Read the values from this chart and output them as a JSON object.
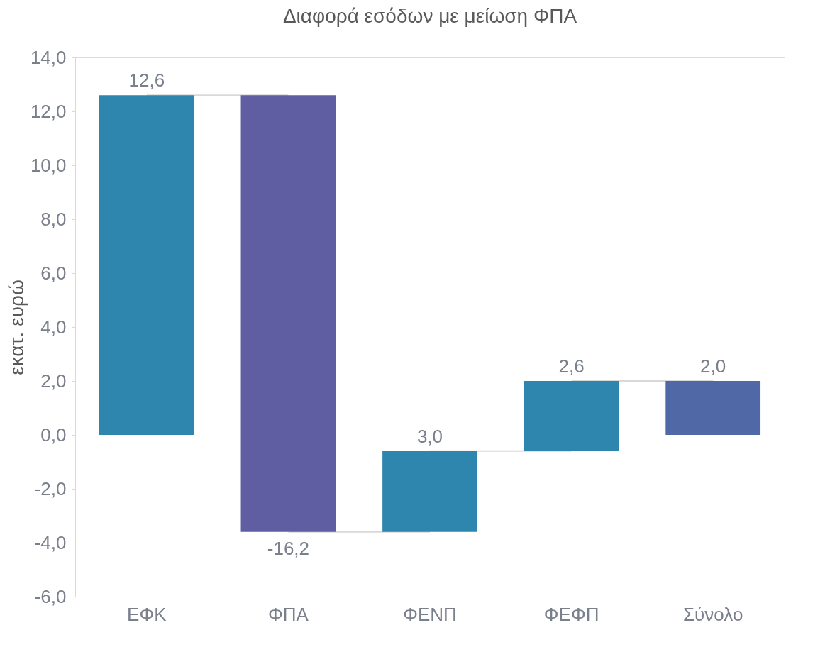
{
  "chart_data": {
    "type": "bar",
    "title": "Διαφορά εσόδων με μείωση ΦΠΑ",
    "ylabel": "εκατ. ευρώ",
    "categories": [
      "ΕΦΚ",
      "ΦΠΑ",
      "ΦΕΝΠ",
      "ΦΕΦΠ",
      "Σύνολο"
    ],
    "values": [
      12.6,
      -16.2,
      3.0,
      2.6,
      2.0
    ],
    "base": [
      0,
      12.6,
      -3.6,
      -0.6,
      0
    ],
    "colors": [
      "#2e86ae",
      "#5f5ea3",
      "#2e86ae",
      "#2e86ae",
      "#5068a5"
    ],
    "value_labels": [
      "12,6",
      "-16,2",
      "3,0",
      "2,6",
      "2,0"
    ],
    "ylim": [
      -6,
      14
    ],
    "yticks": [
      {
        "value": -6,
        "label": "-6,0"
      },
      {
        "value": -4,
        "label": "-4,0"
      },
      {
        "value": -2,
        "label": "-2,0"
      },
      {
        "value": 0,
        "label": "0,0"
      },
      {
        "value": 2,
        "label": "2,0"
      },
      {
        "value": 4,
        "label": "4,0"
      },
      {
        "value": 6,
        "label": "6,0"
      },
      {
        "value": 8,
        "label": "8,0"
      },
      {
        "value": 10,
        "label": "10,0"
      },
      {
        "value": 12,
        "label": "12,0"
      },
      {
        "value": 14,
        "label": "14,0"
      }
    ],
    "grid": false
  }
}
